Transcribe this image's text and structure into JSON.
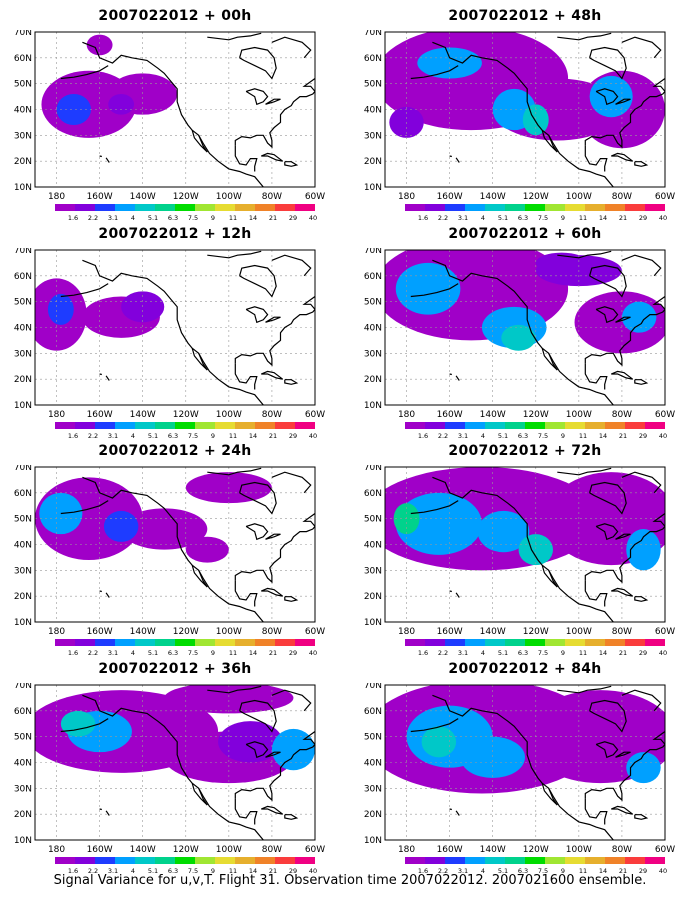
{
  "panels": [
    {
      "title": "2007022012 + 00h"
    },
    {
      "title": "2007022012 + 48h"
    },
    {
      "title": "2007022012 + 12h"
    },
    {
      "title": "2007022012 + 60h"
    },
    {
      "title": "2007022012 + 24h"
    },
    {
      "title": "2007022012 + 72h"
    },
    {
      "title": "2007022012 + 36h"
    },
    {
      "title": "2007022012 + 84h"
    }
  ],
  "axes": {
    "lat_labels": [
      "70N",
      "60N",
      "50N",
      "40N",
      "30N",
      "20N",
      "10N"
    ],
    "lon_labels": [
      "180",
      "160W",
      "140W",
      "120W",
      "100W",
      "80W",
      "60W"
    ],
    "lat_range": [
      10,
      70
    ],
    "lon_range": [
      -190,
      -60
    ]
  },
  "colorbar": {
    "labels": [
      "1.6",
      "2.2",
      "3.1",
      "4",
      "5.1",
      "6.3",
      "7.5",
      "9",
      "11",
      "14",
      "21",
      "29",
      "40"
    ],
    "colors": [
      "#a000c8",
      "#8200dc",
      "#1e3cff",
      "#00a0ff",
      "#00c8c8",
      "#00d28c",
      "#00dc00",
      "#a0e632",
      "#e6dc32",
      "#e6af2d",
      "#f08228",
      "#fa3c3c",
      "#f00082"
    ]
  },
  "footer": "Signal Variance for u,v,T. Flight 31. Observation time 2007022012. 2007021600 ensemble."
}
